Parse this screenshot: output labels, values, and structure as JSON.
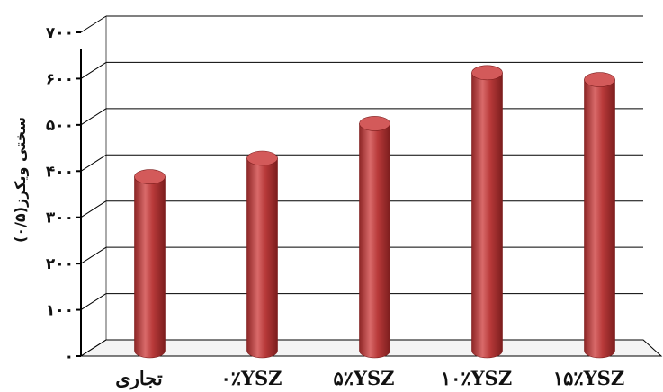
{
  "chart_data": {
    "type": "bar",
    "style": "3d-cylinder",
    "title": "",
    "xlabel": "",
    "ylabel": "سختی ویکرز(۰/۵)",
    "categories": [
      "تجاری",
      "۰٪YSZ",
      "۵٪YSZ",
      "۱۰٪YSZ",
      "۱۵٪YSZ"
    ],
    "values": [
      380,
      420,
      495,
      605,
      590
    ],
    "ylim": [
      0,
      700
    ],
    "yticks": [
      0,
      100,
      200,
      300,
      400,
      500,
      600,
      700
    ],
    "ytick_labels": [
      "۰",
      "۱۰۰",
      "۲۰۰",
      "۳۰۰",
      "۴۰۰",
      "۵۰۰",
      "۶۰۰",
      "۷۰۰"
    ],
    "grid": true,
    "legend": "none",
    "colors": {
      "bar_side": "#b83a3a",
      "bar_highlight": "#e07676",
      "bar_dark": "#7c1d1d",
      "bar_top": "#d35a5a",
      "grid": "#000000"
    }
  }
}
